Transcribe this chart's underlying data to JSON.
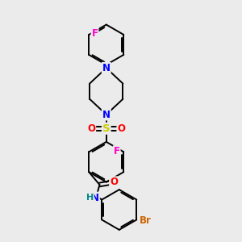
{
  "bg_color": "#ebebeb",
  "atom_colors": {
    "N": "#0000ff",
    "O": "#ff0000",
    "S": "#cccc00",
    "F": "#ff00cc",
    "Br": "#cc6600",
    "C": "#000000",
    "H": "#008888"
  },
  "bond_color": "#000000",
  "bond_width": 1.4,
  "dbo": 0.055,
  "figsize": [
    3.0,
    3.0
  ],
  "dpi": 100
}
